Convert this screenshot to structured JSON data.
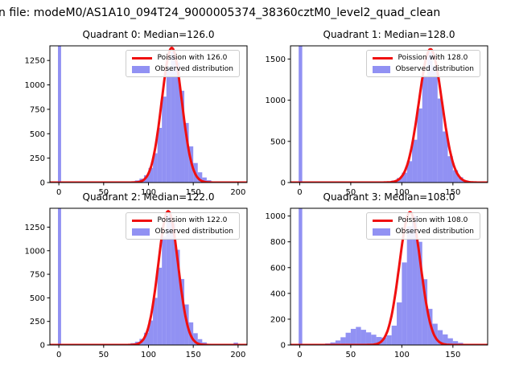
{
  "figure_title": "n file: modeM0/AS1A10_094T24_9000005374_38360cztM0_level2_quad_clean",
  "colors": {
    "background": "#ffffff",
    "axes_background": "#ffffff",
    "hist_fill": "#6666ee",
    "hist_opacity": 0.72,
    "poisson_line": "#f01010",
    "spine": "#000000",
    "tick_label": "#000000",
    "legend_border": "#cccccc"
  },
  "chart_data": [
    {
      "type": "bar",
      "subtype": "histogram_with_poisson_fit",
      "title": "Quadrant 0: Median=126.0",
      "median": 126.0,
      "legend_poisson": "Poission with 126.0",
      "legend_observed": "Observed distribution",
      "xlabel": "",
      "ylabel": "",
      "xlim": [
        -10,
        210
      ],
      "ylim": [
        0,
        1400
      ],
      "xticks": [
        0,
        50,
        100,
        150,
        200
      ],
      "yticks": [
        0,
        250,
        500,
        750,
        1000,
        1250
      ],
      "zero_spike": {
        "x_start": -1.0,
        "x_end": 2.5,
        "full_height": true
      },
      "bins_start": 60,
      "bin_width": 5,
      "bin_values": [
        2,
        3,
        5,
        8,
        12,
        22,
        40,
        75,
        150,
        300,
        560,
        880,
        1180,
        1340,
        1230,
        940,
        610,
        370,
        200,
        105,
        52,
        24,
        11,
        5,
        2,
        1,
        1,
        3
      ],
      "curve": {
        "center": 126.0,
        "sigma": 11.2,
        "amplitude": 1380
      }
    },
    {
      "type": "bar",
      "subtype": "histogram_with_poisson_fit",
      "title": "Quadrant 1: Median=128.0",
      "median": 128.0,
      "legend_poisson": "Poission with 128.0",
      "legend_observed": "Observed distribution",
      "xlabel": "",
      "ylabel": "",
      "xlim": [
        -9,
        184
      ],
      "ylim": [
        0,
        1660
      ],
      "xticks": [
        0,
        50,
        100,
        150
      ],
      "yticks": [
        0,
        500,
        1000,
        1500
      ],
      "zero_spike": {
        "x_start": -1.0,
        "x_end": 2.5,
        "full_height": true
      },
      "bins_start": 75,
      "bin_width": 5,
      "bin_values": [
        3,
        6,
        12,
        25,
        55,
        120,
        260,
        520,
        900,
        1300,
        1580,
        1420,
        1020,
        620,
        320,
        150,
        65,
        26,
        10,
        4
      ],
      "curve": {
        "center": 128.0,
        "sigma": 11.3,
        "amplitude": 1620
      }
    },
    {
      "type": "bar",
      "subtype": "histogram_with_poisson_fit",
      "title": "Quadrant 2: Median=122.0",
      "median": 122.0,
      "legend_poisson": "Poission with 122.0",
      "legend_observed": "Observed distribution",
      "xlabel": "",
      "ylabel": "",
      "xlim": [
        -10,
        210
      ],
      "ylim": [
        0,
        1450
      ],
      "xticks": [
        0,
        50,
        100,
        150,
        200
      ],
      "yticks": [
        0,
        250,
        500,
        750,
        1000,
        1250
      ],
      "zero_spike": {
        "x_start": -1.0,
        "x_end": 2.5,
        "full_height": true
      },
      "bins_start": 55,
      "bin_width": 5,
      "bin_values": [
        2,
        3,
        5,
        8,
        12,
        20,
        35,
        65,
        130,
        260,
        500,
        820,
        1150,
        1390,
        1290,
        1010,
        700,
        430,
        240,
        125,
        62,
        28,
        13,
        6,
        3,
        1,
        1,
        1,
        25
      ],
      "curve": {
        "center": 122.0,
        "sigma": 11.0,
        "amplitude": 1420
      }
    },
    {
      "type": "bar",
      "subtype": "histogram_with_poisson_fit",
      "title": "Quadrant 3: Median=108.0",
      "median": 108.0,
      "legend_poisson": "Poission with 108.0",
      "legend_observed": "Observed distribution",
      "xlabel": "",
      "ylabel": "",
      "xlim": [
        -9,
        184
      ],
      "ylim": [
        0,
        1060
      ],
      "xticks": [
        0,
        50,
        100,
        150
      ],
      "yticks": [
        0,
        200,
        400,
        600,
        800,
        1000
      ],
      "zero_spike": {
        "x_start": -1.0,
        "x_end": 2.5,
        "full_height": true
      },
      "bins_start": 20,
      "bin_width": 5,
      "bin_values": [
        8,
        12,
        20,
        35,
        60,
        95,
        125,
        140,
        118,
        98,
        80,
        62,
        58,
        75,
        150,
        330,
        640,
        920,
        1000,
        800,
        510,
        280,
        165,
        115,
        82,
        52,
        30,
        17,
        9,
        5,
        2
      ],
      "curve": {
        "center": 108.0,
        "sigma": 10.4,
        "amplitude": 1030
      }
    }
  ]
}
